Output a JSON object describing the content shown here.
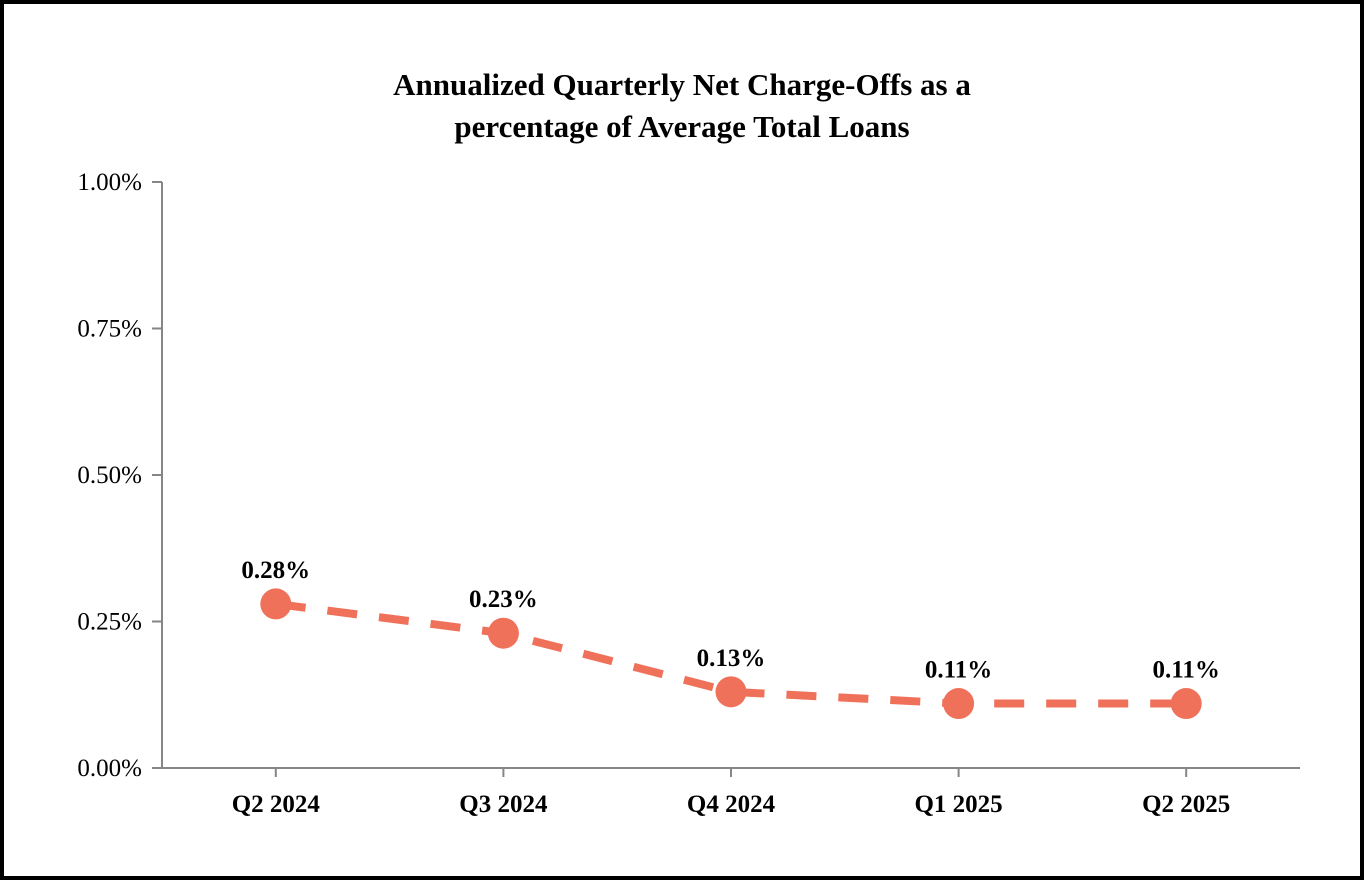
{
  "window": {
    "background_color": "#FFFFFF",
    "border_color": "#000000"
  },
  "chart_data": {
    "type": "line",
    "title": "Annualized Quarterly Net Charge-Offs as a percentage of Average Total Loans",
    "title_lines": [
      "Annualized Quarterly Net Charge-Offs as a",
      "percentage of Average Total Loans"
    ],
    "categories": [
      "Q2 2024",
      "Q3 2024",
      "Q4 2024",
      "Q1 2025",
      "Q2 2025"
    ],
    "values": [
      0.28,
      0.23,
      0.13,
      0.11,
      0.11
    ],
    "point_labels": [
      "0.28%",
      "0.23%",
      "0.13%",
      "0.11%",
      "0.11%"
    ],
    "xlabel": "",
    "ylabel": "",
    "ylim": [
      0,
      1
    ],
    "y_ticks": [
      0,
      0.25,
      0.5,
      0.75,
      1
    ],
    "y_tick_labels": [
      "0.00%",
      "0.25%",
      "0.50%",
      "0.75%",
      "1.00%"
    ],
    "grid": false,
    "legend": false,
    "line_style": "dashed",
    "marker": "circle",
    "line_color": "#F0715A",
    "axis_color": "#868686",
    "text_color": "#000000"
  }
}
